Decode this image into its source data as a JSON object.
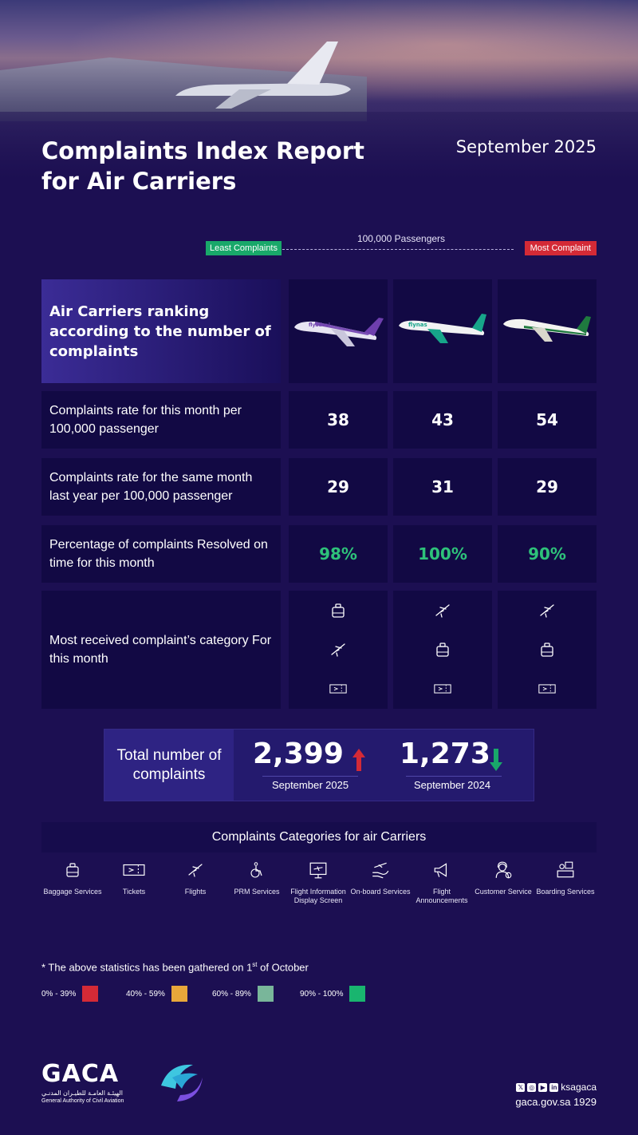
{
  "header": {
    "title": "Complaints Index Report for Air Carriers",
    "period": "September 2025"
  },
  "scale": {
    "caption": "100,000 Passengers",
    "least_label": "Least Complaints",
    "most_label": "Most Complaint",
    "least_color": "#19a86a",
    "most_color": "#d42a36"
  },
  "table": {
    "header_label": "Air Carriers ranking according to the number of complaints",
    "rows": [
      {
        "label": "Complaints rate for this month per 100,000 passenger",
        "values": [
          "38",
          "43",
          "54"
        ]
      },
      {
        "label": "Complaints rate for the same month last year per 100,000 passenger",
        "values": [
          "29",
          "31",
          "29"
        ]
      },
      {
        "label": "Percentage of complaints Resolved on time for this month",
        "values": [
          "98%",
          "100%",
          "90%"
        ]
      },
      {
        "label": "Most received complaint’s category For this month"
      }
    ]
  },
  "totals": {
    "label": "Total number of complaints",
    "current_value": "2,399",
    "current_period": "September 2025",
    "previous_value": "1,273",
    "previous_period": "September 2024"
  },
  "categories": {
    "title": "Complaints Categories for air Carriers",
    "items": [
      {
        "name": "Baggage Services",
        "icon": "baggage-icon"
      },
      {
        "name": "Tickets",
        "icon": "ticket-icon"
      },
      {
        "name": "Flights",
        "icon": "plane-icon"
      },
      {
        "name": "PRM Services",
        "icon": "wheelchair-icon"
      },
      {
        "name": "Flight Information Display Screen",
        "icon": "display-screen-icon"
      },
      {
        "name": "On-board Services",
        "icon": "onboard-service-icon"
      },
      {
        "name": "Flight Announcements",
        "icon": "megaphone-icon"
      },
      {
        "name": "Customer Service",
        "icon": "headset-agent-icon"
      },
      {
        "name": "Boarding Services",
        "icon": "boarding-desk-icon"
      }
    ]
  },
  "note": {
    "prefix": "* The above statistics has been gathered on",
    "day": "1",
    "ordinal": "st",
    "suffix": "of October"
  },
  "legend": [
    {
      "label": "0% - 39%",
      "color": "#d42a36"
    },
    {
      "label": "40% - 59%",
      "color": "#e8a73a"
    },
    {
      "label": "60% - 89%",
      "color": "#79b69a"
    },
    {
      "label": "90% - 100%",
      "color": "#19b56f"
    }
  ],
  "footer": {
    "logo_text": "GACA",
    "logo_arabic": "الهيئـة العامـة للطيـران المدنـي",
    "logo_english": "General Authority of Civil Aviation",
    "handle": "ksagaca",
    "website": "gaca.gov.sa 1929"
  }
}
